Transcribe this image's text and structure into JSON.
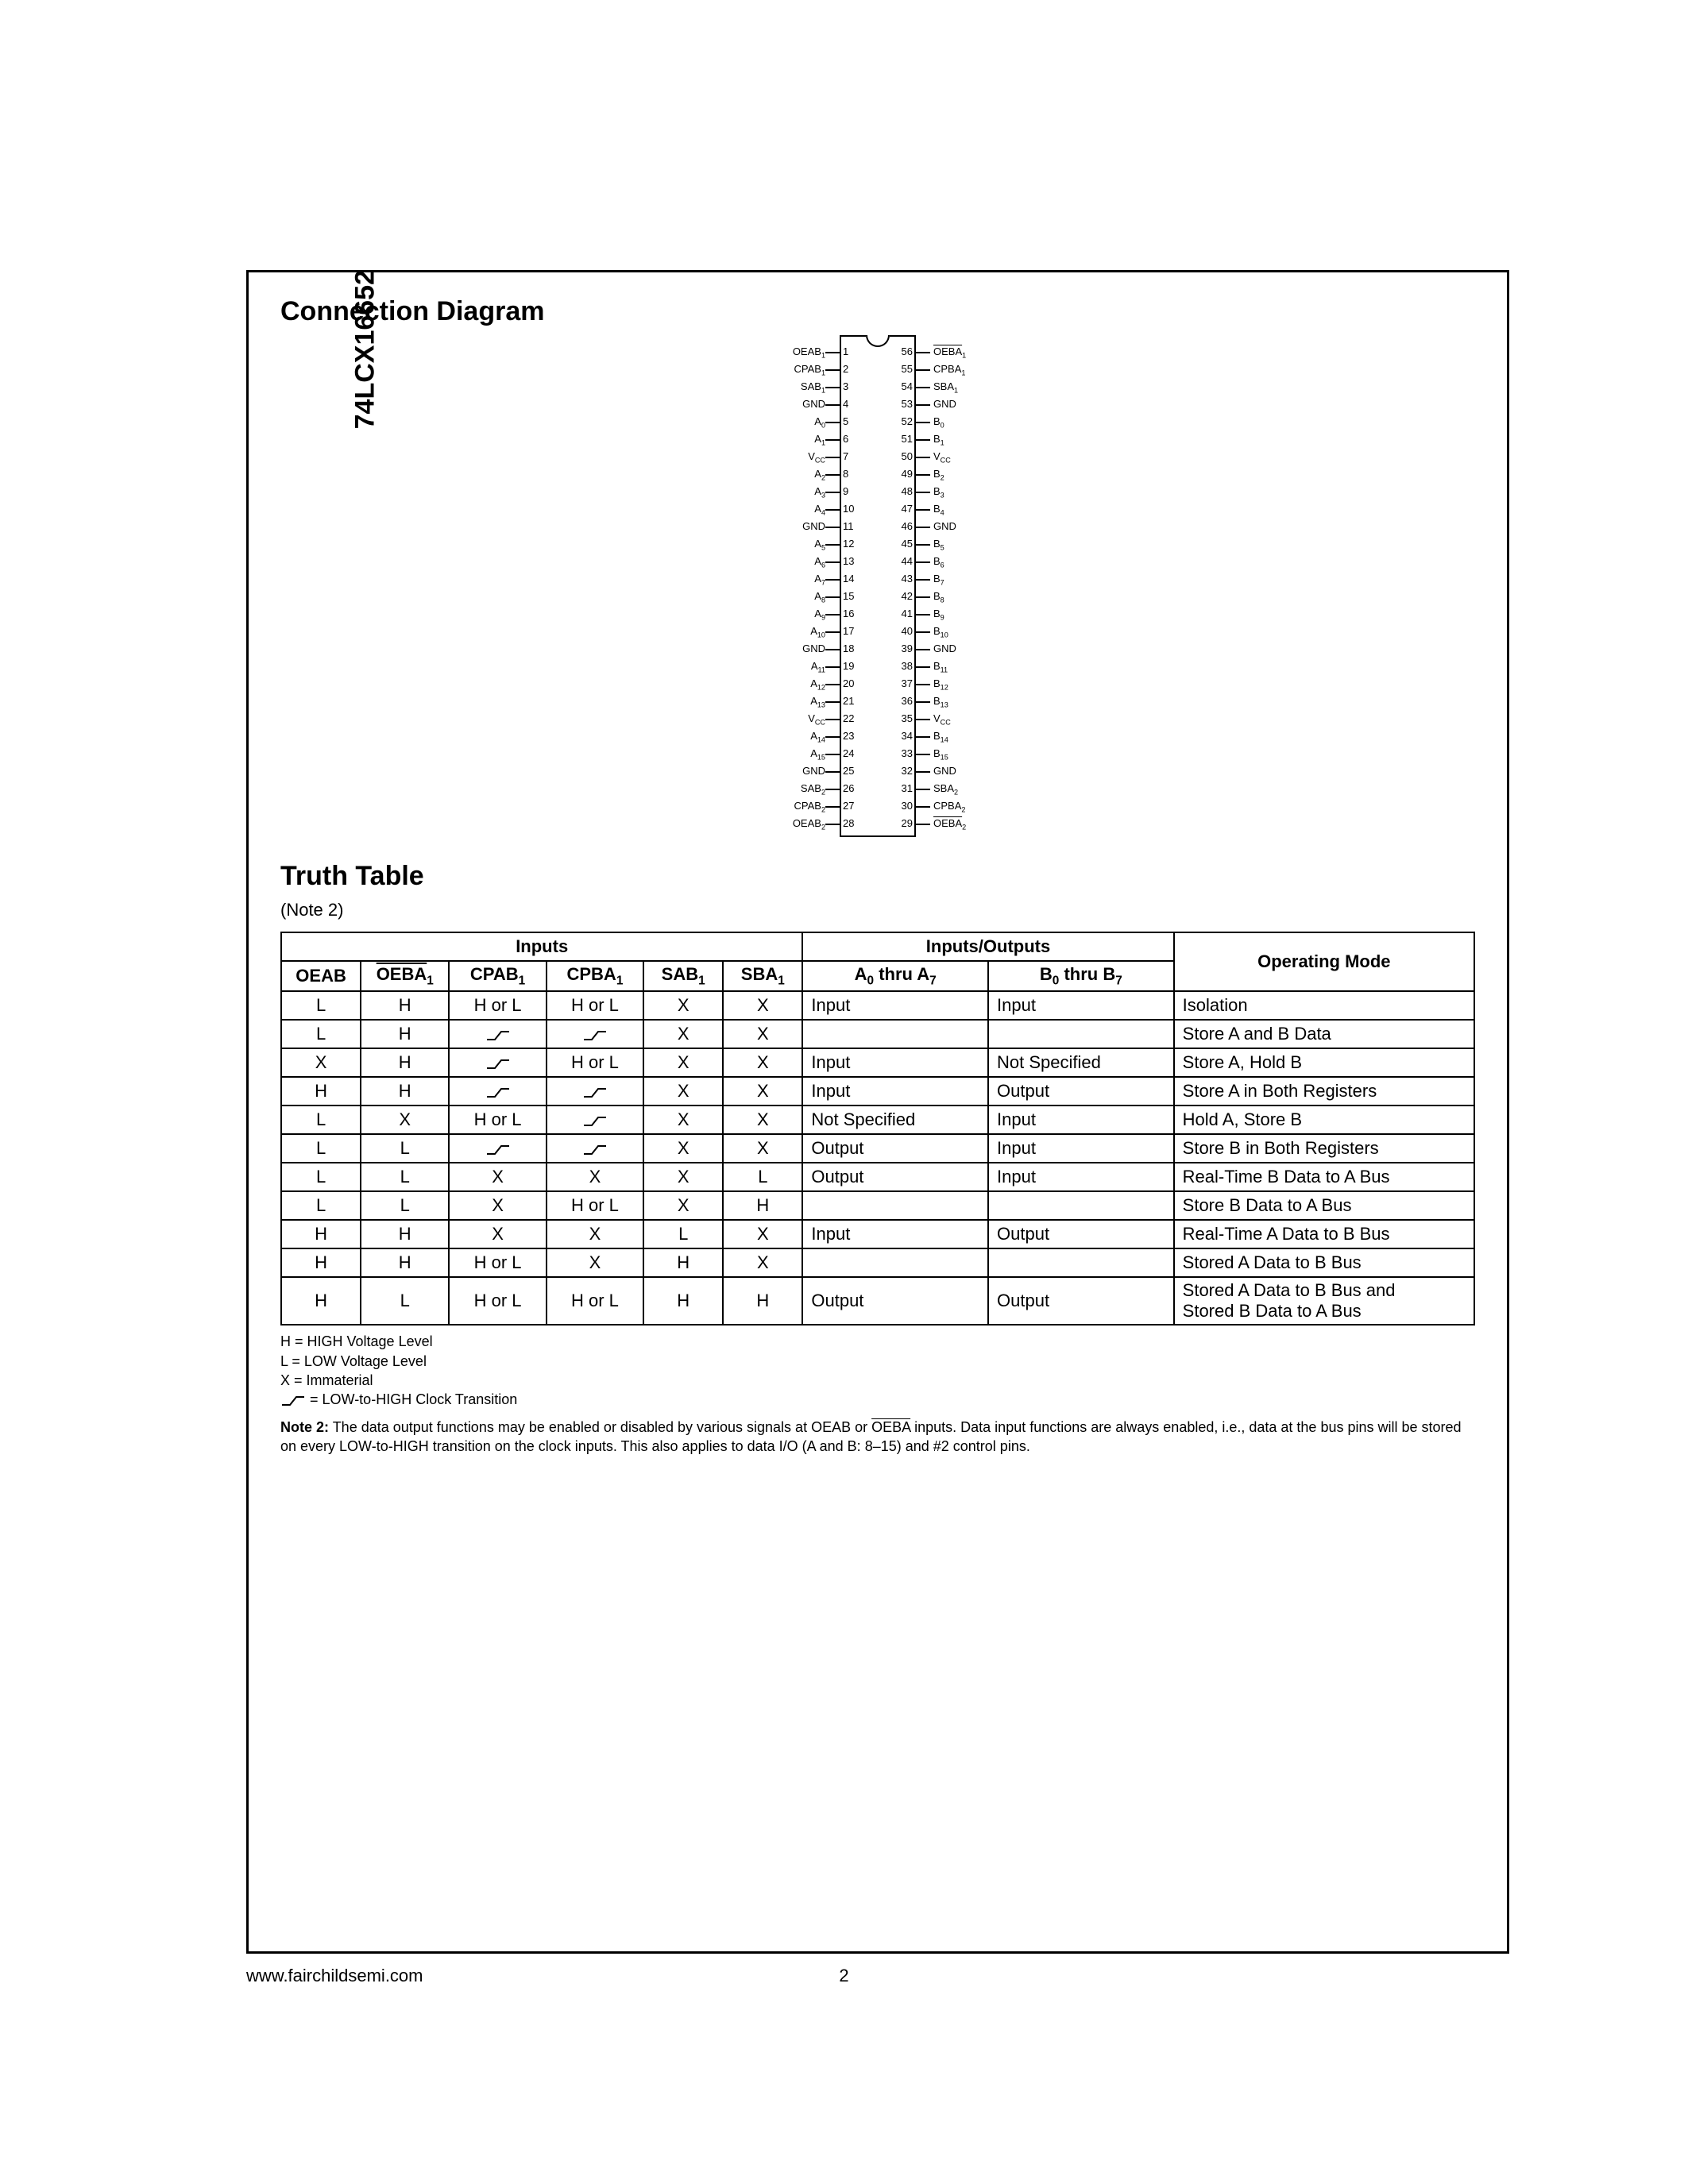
{
  "part_number": "74LCX16652",
  "section1_title": "Connection Diagram",
  "section2_title": "Truth Table",
  "note_ref": "(Note 2)",
  "footer_url": "www.fairchildsemi.com",
  "footer_page": "2",
  "pinout": {
    "chip_width": 96,
    "pin_pitch": 22,
    "top_pad": 10,
    "leftPins": [
      {
        "num": "1",
        "lbl": "OEAB",
        "sub": "1",
        "ov": false
      },
      {
        "num": "2",
        "lbl": "CPAB",
        "sub": "1",
        "ov": false
      },
      {
        "num": "3",
        "lbl": "SAB",
        "sub": "1",
        "ov": false
      },
      {
        "num": "4",
        "lbl": "GND",
        "sub": "",
        "ov": false
      },
      {
        "num": "5",
        "lbl": "A",
        "sub": "0",
        "ov": false
      },
      {
        "num": "6",
        "lbl": "A",
        "sub": "1",
        "ov": false
      },
      {
        "num": "7",
        "lbl": "V",
        "sub": "CC",
        "ov": false
      },
      {
        "num": "8",
        "lbl": "A",
        "sub": "2",
        "ov": false
      },
      {
        "num": "9",
        "lbl": "A",
        "sub": "3",
        "ov": false
      },
      {
        "num": "10",
        "lbl": "A",
        "sub": "4",
        "ov": false
      },
      {
        "num": "11",
        "lbl": "GND",
        "sub": "",
        "ov": false
      },
      {
        "num": "12",
        "lbl": "A",
        "sub": "5",
        "ov": false
      },
      {
        "num": "13",
        "lbl": "A",
        "sub": "6",
        "ov": false
      },
      {
        "num": "14",
        "lbl": "A",
        "sub": "7",
        "ov": false
      },
      {
        "num": "15",
        "lbl": "A",
        "sub": "8",
        "ov": false
      },
      {
        "num": "16",
        "lbl": "A",
        "sub": "9",
        "ov": false
      },
      {
        "num": "17",
        "lbl": "A",
        "sub": "10",
        "ov": false
      },
      {
        "num": "18",
        "lbl": "GND",
        "sub": "",
        "ov": false
      },
      {
        "num": "19",
        "lbl": "A",
        "sub": "11",
        "ov": false
      },
      {
        "num": "20",
        "lbl": "A",
        "sub": "12",
        "ov": false
      },
      {
        "num": "21",
        "lbl": "A",
        "sub": "13",
        "ov": false
      },
      {
        "num": "22",
        "lbl": "V",
        "sub": "CC",
        "ov": false
      },
      {
        "num": "23",
        "lbl": "A",
        "sub": "14",
        "ov": false
      },
      {
        "num": "24",
        "lbl": "A",
        "sub": "15",
        "ov": false
      },
      {
        "num": "25",
        "lbl": "GND",
        "sub": "",
        "ov": false
      },
      {
        "num": "26",
        "lbl": "SAB",
        "sub": "2",
        "ov": false
      },
      {
        "num": "27",
        "lbl": "CPAB",
        "sub": "2",
        "ov": false
      },
      {
        "num": "28",
        "lbl": "OEAB",
        "sub": "2",
        "ov": false
      }
    ],
    "rightPins": [
      {
        "num": "56",
        "lbl": "OEBA",
        "sub": "1",
        "ov": true
      },
      {
        "num": "55",
        "lbl": "CPBA",
        "sub": "1",
        "ov": false
      },
      {
        "num": "54",
        "lbl": "SBA",
        "sub": "1",
        "ov": false
      },
      {
        "num": "53",
        "lbl": "GND",
        "sub": "",
        "ov": false
      },
      {
        "num": "52",
        "lbl": "B",
        "sub": "0",
        "ov": false
      },
      {
        "num": "51",
        "lbl": "B",
        "sub": "1",
        "ov": false
      },
      {
        "num": "50",
        "lbl": "V",
        "sub": "CC",
        "ov": false
      },
      {
        "num": "49",
        "lbl": "B",
        "sub": "2",
        "ov": false
      },
      {
        "num": "48",
        "lbl": "B",
        "sub": "3",
        "ov": false
      },
      {
        "num": "47",
        "lbl": "B",
        "sub": "4",
        "ov": false
      },
      {
        "num": "46",
        "lbl": "GND",
        "sub": "",
        "ov": false
      },
      {
        "num": "45",
        "lbl": "B",
        "sub": "5",
        "ov": false
      },
      {
        "num": "44",
        "lbl": "B",
        "sub": "6",
        "ov": false
      },
      {
        "num": "43",
        "lbl": "B",
        "sub": "7",
        "ov": false
      },
      {
        "num": "42",
        "lbl": "B",
        "sub": "8",
        "ov": false
      },
      {
        "num": "41",
        "lbl": "B",
        "sub": "9",
        "ov": false
      },
      {
        "num": "40",
        "lbl": "B",
        "sub": "10",
        "ov": false
      },
      {
        "num": "39",
        "lbl": "GND",
        "sub": "",
        "ov": false
      },
      {
        "num": "38",
        "lbl": "B",
        "sub": "11",
        "ov": false
      },
      {
        "num": "37",
        "lbl": "B",
        "sub": "12",
        "ov": false
      },
      {
        "num": "36",
        "lbl": "B",
        "sub": "13",
        "ov": false
      },
      {
        "num": "35",
        "lbl": "V",
        "sub": "CC",
        "ov": false
      },
      {
        "num": "34",
        "lbl": "B",
        "sub": "14",
        "ov": false
      },
      {
        "num": "33",
        "lbl": "B",
        "sub": "15",
        "ov": false
      },
      {
        "num": "32",
        "lbl": "GND",
        "sub": "",
        "ov": false
      },
      {
        "num": "31",
        "lbl": "SBA",
        "sub": "2",
        "ov": false
      },
      {
        "num": "30",
        "lbl": "CPBA",
        "sub": "2",
        "ov": false
      },
      {
        "num": "29",
        "lbl": "OEBA",
        "sub": "2",
        "ov": true
      }
    ]
  },
  "truth": {
    "header_inputs": "Inputs",
    "header_io": "Inputs/Outputs",
    "header_mode": "Operating Mode",
    "cols": [
      "OEAB",
      "OEBA1_ov",
      "CPAB1",
      "CPBA1",
      "SAB1",
      "SBA1",
      "A0 thru A7",
      "B0 thru B7"
    ],
    "rows": [
      {
        "c": [
          "L",
          "H",
          "H or L",
          "H or L",
          "X",
          "X",
          "Input",
          "Input"
        ],
        "mode": "Isolation",
        "span": 1
      },
      {
        "c": [
          "L",
          "H",
          "__R__",
          "__R__",
          "X",
          "X",
          "",
          ""
        ],
        "mode": "Store A and B Data",
        "span": 1
      },
      {
        "c": [
          "X",
          "H",
          "__R__",
          "H or L",
          "X",
          "X",
          "Input",
          "Not Specified"
        ],
        "mode": "Store A, Hold B",
        "span": 1
      },
      {
        "c": [
          "H",
          "H",
          "__R__",
          "__R__",
          "X",
          "X",
          "Input",
          "Output"
        ],
        "mode": "Store A in Both Registers",
        "span": 1
      },
      {
        "c": [
          "L",
          "X",
          "H or L",
          "__R__",
          "X",
          "X",
          "Not Specified",
          "Input"
        ],
        "mode": "Hold A, Store B",
        "span": 1
      },
      {
        "c": [
          "L",
          "L",
          "__R__",
          "__R__",
          "X",
          "X",
          "Output",
          "Input"
        ],
        "mode": "Store B in Both Registers",
        "span": 1
      },
      {
        "c": [
          "L",
          "L",
          "X",
          "X",
          "X",
          "L",
          "Output",
          "Input"
        ],
        "mode": "Real-Time B Data to A Bus",
        "span": 1
      },
      {
        "c": [
          "L",
          "L",
          "X",
          "H or L",
          "X",
          "H",
          "",
          ""
        ],
        "mode": "Store B Data to A Bus",
        "span": 1
      },
      {
        "c": [
          "H",
          "H",
          "X",
          "X",
          "L",
          "X",
          "Input",
          "Output"
        ],
        "mode": "Real-Time A Data to B Bus",
        "span": 1
      },
      {
        "c": [
          "H",
          "H",
          "H or L",
          "X",
          "H",
          "X",
          "",
          ""
        ],
        "mode": "Stored A Data to B Bus",
        "span": 1
      },
      {
        "c": [
          "H",
          "L",
          "H or L",
          "H or L",
          "H",
          "H",
          "Output",
          "Output"
        ],
        "mode": "Stored A Data to B Bus and Stored B Data to A Bus",
        "span": 2
      }
    ]
  },
  "legend": {
    "h": "H = HIGH Voltage Level",
    "l": "L = LOW Voltage Level",
    "x": "X = Immaterial",
    "r": " = LOW-to-HIGH Clock Transition"
  },
  "note2_label": "Note 2:",
  "note2_text": " The data output functions may be enabled or disabled by various signals at OEAB or OEBA inputs. Data input functions are always enabled, i.e., data at the bus pins will be stored on every LOW-to-HIGH transition on the clock inputs. This also applies to data I/O (A and B: 8–15) and #2 control pins."
}
